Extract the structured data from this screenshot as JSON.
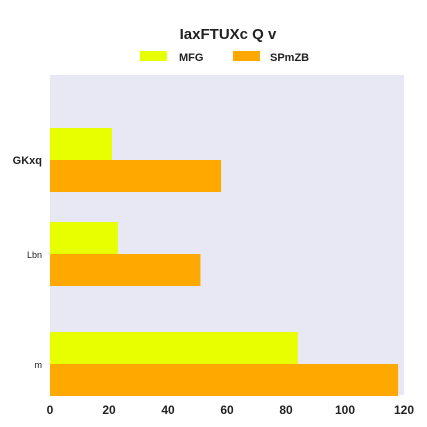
{
  "chart_data": {
    "type": "bar",
    "orientation": "horizontal",
    "title": "IaxFTUXc Q v",
    "categories": [
      "GKxq",
      "Lbn",
      "m"
    ],
    "category_label_bold": [
      true,
      false,
      false
    ],
    "series": [
      {
        "name": "MFG",
        "color": "#e8ff00",
        "values": [
          21,
          23,
          84
        ]
      },
      {
        "name": "SPmZB",
        "color": "#ffa800",
        "values": [
          58,
          51,
          118
        ]
      }
    ],
    "xlim": [
      0,
      120
    ],
    "xticks": [
      "0",
      "20",
      "40",
      "60",
      "80",
      "100",
      "120"
    ],
    "xtick_values": [
      0,
      20,
      40,
      60,
      80,
      100,
      120
    ],
    "grid": false,
    "background": "#e8e8f4",
    "legend_position": "top-center"
  }
}
